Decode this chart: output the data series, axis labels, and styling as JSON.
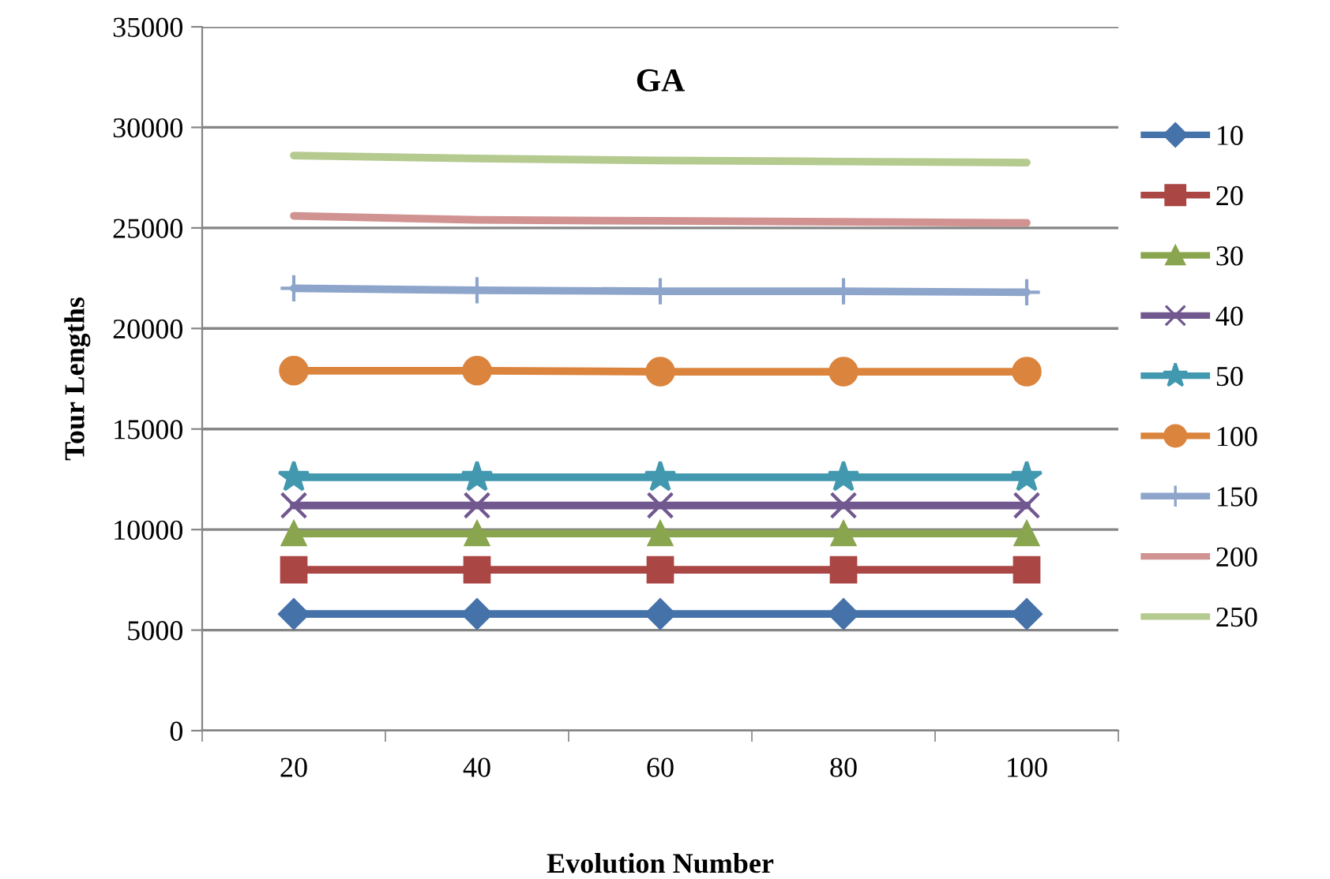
{
  "chart_data": {
    "type": "line",
    "title": "GA",
    "xlabel": "Evolution Number",
    "ylabel": "Tour Lengths",
    "categories": [
      "20",
      "40",
      "60",
      "80",
      "100"
    ],
    "series": [
      {
        "name": "10",
        "color": "#4672aa",
        "marker": "diamond",
        "values": [
          5800,
          5800,
          5800,
          5800,
          5800
        ]
      },
      {
        "name": "20",
        "color": "#aa4644",
        "marker": "square",
        "values": [
          8000,
          8000,
          8000,
          8000,
          8000
        ]
      },
      {
        "name": "30",
        "color": "#89a54e",
        "marker": "triangle",
        "values": [
          9800,
          9800,
          9800,
          9800,
          9800
        ]
      },
      {
        "name": "40",
        "color": "#71588f",
        "marker": "cross",
        "values": [
          11200,
          11200,
          11200,
          11200,
          11200
        ]
      },
      {
        "name": "50",
        "color": "#4198af",
        "marker": "star",
        "values": [
          12600,
          12600,
          12600,
          12600,
          12600
        ]
      },
      {
        "name": "100",
        "color": "#db843d",
        "marker": "circle",
        "values": [
          17900,
          17900,
          17850,
          17850,
          17850
        ]
      },
      {
        "name": "150",
        "color": "#8ea5cb",
        "marker": "plus",
        "values": [
          22000,
          21900,
          21850,
          21850,
          21800
        ]
      },
      {
        "name": "200",
        "color": "#d09392",
        "marker": "none",
        "values": [
          25600,
          25400,
          25350,
          25300,
          25250
        ]
      },
      {
        "name": "250",
        "color": "#b4ca8f",
        "marker": "none",
        "values": [
          28600,
          28450,
          28350,
          28300,
          28250
        ]
      }
    ],
    "ylim": [
      0,
      35000
    ],
    "yticks": [
      0,
      5000,
      10000,
      15000,
      20000,
      25000,
      30000,
      35000
    ],
    "grid": "y",
    "legend": "right"
  }
}
